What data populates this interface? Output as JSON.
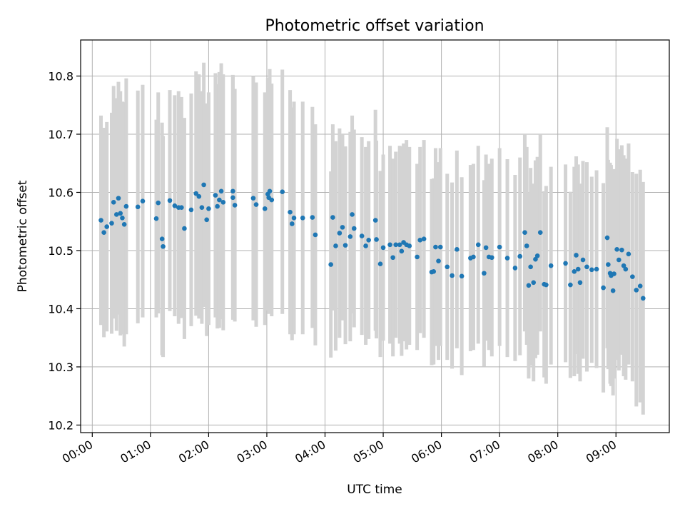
{
  "chart_data": {
    "type": "scatter",
    "title": "Photometric offset variation",
    "xlabel": "UTC time",
    "ylabel": "Photometric offset",
    "grid": true,
    "xlim_minutes": [
      -12,
      595
    ],
    "ylim": [
      10.187,
      10.862
    ],
    "x_tick_minutes": [
      0,
      60,
      120,
      180,
      240,
      300,
      360,
      420,
      480,
      540
    ],
    "x_tick_labels": [
      "00:00",
      "01:00",
      "02:00",
      "03:00",
      "04:00",
      "05:00",
      "06:00",
      "07:00",
      "08:00",
      "09:00"
    ],
    "y_ticks": [
      10.2,
      10.3,
      10.4,
      10.5,
      10.6,
      10.7,
      10.8
    ],
    "y_tick_labels": [
      "10.2",
      "10.3",
      "10.4",
      "10.5",
      "10.6",
      "10.7",
      "10.8"
    ],
    "colors": {
      "point": "#1f77b4",
      "errorbar": "#d3d3d3",
      "grid": "#b0b0b0",
      "axis": "#000000"
    },
    "series": [
      {
        "name": "offset",
        "points": [
          [
            9,
            10.552,
            0.18
          ],
          [
            12,
            10.531,
            0.18
          ],
          [
            15,
            10.541,
            0.18
          ],
          [
            20,
            10.547,
            0.19
          ],
          [
            22,
            10.583,
            0.2
          ],
          [
            25,
            10.562,
            0.2
          ],
          [
            27,
            10.59,
            0.2
          ],
          [
            29,
            10.564,
            0.21
          ],
          [
            31,
            10.556,
            0.2
          ],
          [
            33,
            10.545,
            0.21
          ],
          [
            35,
            10.576,
            0.22
          ],
          [
            47,
            10.575,
            0.2
          ],
          [
            52,
            10.585,
            0.2
          ],
          [
            66,
            10.555,
            0.17
          ],
          [
            68,
            10.582,
            0.19
          ],
          [
            72,
            10.52,
            0.2
          ],
          [
            73,
            10.507,
            0.19
          ],
          [
            80,
            10.586,
            0.19
          ],
          [
            85,
            10.577,
            0.19
          ],
          [
            89,
            10.574,
            0.2
          ],
          [
            92,
            10.574,
            0.19
          ],
          [
            95,
            10.538,
            0.19
          ],
          [
            102,
            10.57,
            0.2
          ],
          [
            107,
            10.598,
            0.21
          ],
          [
            110,
            10.593,
            0.21
          ],
          [
            113,
            10.574,
            0.2
          ],
          [
            115,
            10.613,
            0.21
          ],
          [
            118,
            10.553,
            0.2
          ],
          [
            120,
            10.572,
            0.2
          ],
          [
            127,
            10.595,
            0.21
          ],
          [
            129,
            10.576,
            0.21
          ],
          [
            131,
            10.587,
            0.22
          ],
          [
            133,
            10.602,
            0.22
          ],
          [
            135,
            10.583,
            0.22
          ],
          [
            145,
            10.602,
            0.2
          ],
          [
            145,
            10.591,
            0.21
          ],
          [
            147,
            10.578,
            0.2
          ],
          [
            166,
            10.59,
            0.21
          ],
          [
            169,
            10.579,
            0.21
          ],
          [
            178,
            10.572,
            0.2
          ],
          [
            181,
            10.597,
            0.2
          ],
          [
            182,
            10.591,
            0.2
          ],
          [
            183,
            10.602,
            0.21
          ],
          [
            185,
            10.587,
            0.2
          ],
          [
            196,
            10.601,
            0.21
          ],
          [
            204,
            10.566,
            0.21
          ],
          [
            206,
            10.546,
            0.2
          ],
          [
            208,
            10.556,
            0.2
          ],
          [
            217,
            10.556,
            0.2
          ],
          [
            227,
            10.557,
            0.19
          ],
          [
            230,
            10.527,
            0.19
          ],
          [
            246,
            10.476,
            0.16
          ],
          [
            248,
            10.557,
            0.16
          ],
          [
            251,
            10.508,
            0.18
          ],
          [
            255,
            10.53,
            0.18
          ],
          [
            258,
            10.54,
            0.16
          ],
          [
            261,
            10.509,
            0.17
          ],
          [
            266,
            10.524,
            0.18
          ],
          [
            268,
            10.562,
            0.17
          ],
          [
            270,
            10.538,
            0.17
          ],
          [
            278,
            10.525,
            0.17
          ],
          [
            282,
            10.508,
            0.17
          ],
          [
            285,
            10.518,
            0.17
          ],
          [
            292,
            10.552,
            0.19
          ],
          [
            293,
            10.519,
            0.17
          ],
          [
            297,
            10.477,
            0.16
          ],
          [
            300,
            10.505,
            0.16
          ],
          [
            307,
            10.51,
            0.17
          ],
          [
            310,
            10.488,
            0.17
          ],
          [
            313,
            10.51,
            0.16
          ],
          [
            317,
            10.51,
            0.17
          ],
          [
            319,
            10.499,
            0.18
          ],
          [
            321,
            10.514,
            0.17
          ],
          [
            324,
            10.51,
            0.18
          ],
          [
            327,
            10.508,
            0.17
          ],
          [
            335,
            10.489,
            0.16
          ],
          [
            338,
            10.518,
            0.16
          ],
          [
            342,
            10.52,
            0.17
          ],
          [
            350,
            10.463,
            0.16
          ],
          [
            352,
            10.464,
            0.16
          ],
          [
            354,
            10.506,
            0.17
          ],
          [
            357,
            10.482,
            0.17
          ],
          [
            359,
            10.506,
            0.17
          ],
          [
            366,
            10.472,
            0.16
          ],
          [
            371,
            10.457,
            0.16
          ],
          [
            376,
            10.502,
            0.17
          ],
          [
            381,
            10.456,
            0.17
          ],
          [
            390,
            10.487,
            0.16
          ],
          [
            393,
            10.489,
            0.16
          ],
          [
            398,
            10.51,
            0.17
          ],
          [
            404,
            10.461,
            0.16
          ],
          [
            406,
            10.505,
            0.16
          ],
          [
            409,
            10.489,
            0.16
          ],
          [
            412,
            10.488,
            0.17
          ],
          [
            420,
            10.506,
            0.17
          ],
          [
            428,
            10.487,
            0.17
          ],
          [
            436,
            10.47,
            0.16
          ],
          [
            441,
            10.49,
            0.17
          ],
          [
            446,
            10.531,
            0.17
          ],
          [
            448,
            10.508,
            0.17
          ],
          [
            450,
            10.44,
            0.16
          ],
          [
            452,
            10.472,
            0.17
          ],
          [
            455,
            10.445,
            0.17
          ],
          [
            457,
            10.485,
            0.17
          ],
          [
            459,
            10.491,
            0.17
          ],
          [
            462,
            10.531,
            0.17
          ],
          [
            466,
            10.442,
            0.16
          ],
          [
            468,
            10.441,
            0.17
          ],
          [
            473,
            10.474,
            0.17
          ],
          [
            488,
            10.478,
            0.17
          ],
          [
            493,
            10.441,
            0.16
          ],
          [
            497,
            10.464,
            0.18
          ],
          [
            499,
            10.492,
            0.17
          ],
          [
            501,
            10.468,
            0.18
          ],
          [
            503,
            10.445,
            0.17
          ],
          [
            506,
            10.484,
            0.17
          ],
          [
            510,
            10.472,
            0.18
          ],
          [
            515,
            10.467,
            0.16
          ],
          [
            520,
            10.468,
            0.17
          ],
          [
            527,
            10.436,
            0.18
          ],
          [
            531,
            10.522,
            0.19
          ],
          [
            532,
            10.476,
            0.18
          ],
          [
            534,
            10.461,
            0.19
          ],
          [
            535,
            10.457,
            0.19
          ],
          [
            537,
            10.431,
            0.18
          ],
          [
            538,
            10.46,
            0.18
          ],
          [
            541,
            10.502,
            0.19
          ],
          [
            543,
            10.484,
            0.19
          ],
          [
            546,
            10.501,
            0.18
          ],
          [
            548,
            10.474,
            0.19
          ],
          [
            550,
            10.468,
            0.19
          ],
          [
            553,
            10.494,
            0.19
          ],
          [
            557,
            10.455,
            0.18
          ],
          [
            561,
            10.432,
            0.2
          ],
          [
            565,
            10.439,
            0.2
          ],
          [
            568,
            10.418,
            0.2
          ]
        ]
      }
    ]
  }
}
